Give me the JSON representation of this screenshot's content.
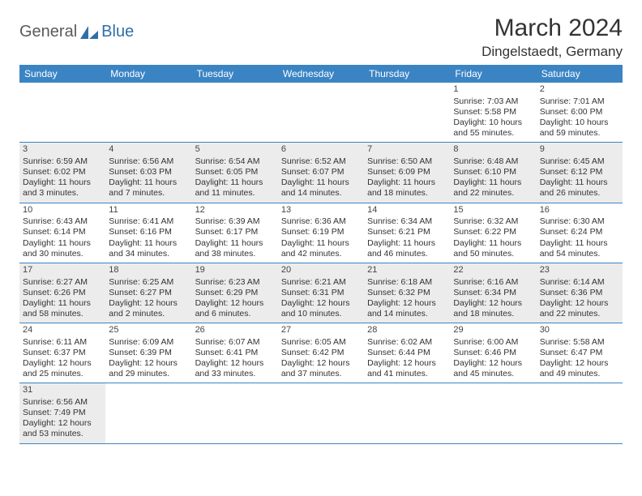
{
  "brand": {
    "part1": "General",
    "part2": "Blue"
  },
  "title": "March 2024",
  "location": "Dingelstaedt, Germany",
  "colors": {
    "header_bg": "#3b84c4",
    "header_text": "#ffffff",
    "shaded_bg": "#ececec",
    "row_border": "#3b84c4",
    "brand_gray": "#5a5a5a",
    "brand_blue": "#2f6fa8"
  },
  "day_headers": [
    "Sunday",
    "Monday",
    "Tuesday",
    "Wednesday",
    "Thursday",
    "Friday",
    "Saturday"
  ],
  "weeks": [
    [
      {
        "n": "",
        "sr": "",
        "ss": "",
        "dl": "",
        "shaded": false
      },
      {
        "n": "",
        "sr": "",
        "ss": "",
        "dl": "",
        "shaded": false
      },
      {
        "n": "",
        "sr": "",
        "ss": "",
        "dl": "",
        "shaded": false
      },
      {
        "n": "",
        "sr": "",
        "ss": "",
        "dl": "",
        "shaded": false
      },
      {
        "n": "",
        "sr": "",
        "ss": "",
        "dl": "",
        "shaded": false
      },
      {
        "n": "1",
        "sr": "Sunrise: 7:03 AM",
        "ss": "Sunset: 5:58 PM",
        "dl": "Daylight: 10 hours and 55 minutes.",
        "shaded": false
      },
      {
        "n": "2",
        "sr": "Sunrise: 7:01 AM",
        "ss": "Sunset: 6:00 PM",
        "dl": "Daylight: 10 hours and 59 minutes.",
        "shaded": false
      }
    ],
    [
      {
        "n": "3",
        "sr": "Sunrise: 6:59 AM",
        "ss": "Sunset: 6:02 PM",
        "dl": "Daylight: 11 hours and 3 minutes.",
        "shaded": true
      },
      {
        "n": "4",
        "sr": "Sunrise: 6:56 AM",
        "ss": "Sunset: 6:03 PM",
        "dl": "Daylight: 11 hours and 7 minutes.",
        "shaded": true
      },
      {
        "n": "5",
        "sr": "Sunrise: 6:54 AM",
        "ss": "Sunset: 6:05 PM",
        "dl": "Daylight: 11 hours and 11 minutes.",
        "shaded": true
      },
      {
        "n": "6",
        "sr": "Sunrise: 6:52 AM",
        "ss": "Sunset: 6:07 PM",
        "dl": "Daylight: 11 hours and 14 minutes.",
        "shaded": true
      },
      {
        "n": "7",
        "sr": "Sunrise: 6:50 AM",
        "ss": "Sunset: 6:09 PM",
        "dl": "Daylight: 11 hours and 18 minutes.",
        "shaded": true
      },
      {
        "n": "8",
        "sr": "Sunrise: 6:48 AM",
        "ss": "Sunset: 6:10 PM",
        "dl": "Daylight: 11 hours and 22 minutes.",
        "shaded": true
      },
      {
        "n": "9",
        "sr": "Sunrise: 6:45 AM",
        "ss": "Sunset: 6:12 PM",
        "dl": "Daylight: 11 hours and 26 minutes.",
        "shaded": true
      }
    ],
    [
      {
        "n": "10",
        "sr": "Sunrise: 6:43 AM",
        "ss": "Sunset: 6:14 PM",
        "dl": "Daylight: 11 hours and 30 minutes.",
        "shaded": false
      },
      {
        "n": "11",
        "sr": "Sunrise: 6:41 AM",
        "ss": "Sunset: 6:16 PM",
        "dl": "Daylight: 11 hours and 34 minutes.",
        "shaded": false
      },
      {
        "n": "12",
        "sr": "Sunrise: 6:39 AM",
        "ss": "Sunset: 6:17 PM",
        "dl": "Daylight: 11 hours and 38 minutes.",
        "shaded": false
      },
      {
        "n": "13",
        "sr": "Sunrise: 6:36 AM",
        "ss": "Sunset: 6:19 PM",
        "dl": "Daylight: 11 hours and 42 minutes.",
        "shaded": false
      },
      {
        "n": "14",
        "sr": "Sunrise: 6:34 AM",
        "ss": "Sunset: 6:21 PM",
        "dl": "Daylight: 11 hours and 46 minutes.",
        "shaded": false
      },
      {
        "n": "15",
        "sr": "Sunrise: 6:32 AM",
        "ss": "Sunset: 6:22 PM",
        "dl": "Daylight: 11 hours and 50 minutes.",
        "shaded": false
      },
      {
        "n": "16",
        "sr": "Sunrise: 6:30 AM",
        "ss": "Sunset: 6:24 PM",
        "dl": "Daylight: 11 hours and 54 minutes.",
        "shaded": false
      }
    ],
    [
      {
        "n": "17",
        "sr": "Sunrise: 6:27 AM",
        "ss": "Sunset: 6:26 PM",
        "dl": "Daylight: 11 hours and 58 minutes.",
        "shaded": true
      },
      {
        "n": "18",
        "sr": "Sunrise: 6:25 AM",
        "ss": "Sunset: 6:27 PM",
        "dl": "Daylight: 12 hours and 2 minutes.",
        "shaded": true
      },
      {
        "n": "19",
        "sr": "Sunrise: 6:23 AM",
        "ss": "Sunset: 6:29 PM",
        "dl": "Daylight: 12 hours and 6 minutes.",
        "shaded": true
      },
      {
        "n": "20",
        "sr": "Sunrise: 6:21 AM",
        "ss": "Sunset: 6:31 PM",
        "dl": "Daylight: 12 hours and 10 minutes.",
        "shaded": true
      },
      {
        "n": "21",
        "sr": "Sunrise: 6:18 AM",
        "ss": "Sunset: 6:32 PM",
        "dl": "Daylight: 12 hours and 14 minutes.",
        "shaded": true
      },
      {
        "n": "22",
        "sr": "Sunrise: 6:16 AM",
        "ss": "Sunset: 6:34 PM",
        "dl": "Daylight: 12 hours and 18 minutes.",
        "shaded": true
      },
      {
        "n": "23",
        "sr": "Sunrise: 6:14 AM",
        "ss": "Sunset: 6:36 PM",
        "dl": "Daylight: 12 hours and 22 minutes.",
        "shaded": true
      }
    ],
    [
      {
        "n": "24",
        "sr": "Sunrise: 6:11 AM",
        "ss": "Sunset: 6:37 PM",
        "dl": "Daylight: 12 hours and 25 minutes.",
        "shaded": false
      },
      {
        "n": "25",
        "sr": "Sunrise: 6:09 AM",
        "ss": "Sunset: 6:39 PM",
        "dl": "Daylight: 12 hours and 29 minutes.",
        "shaded": false
      },
      {
        "n": "26",
        "sr": "Sunrise: 6:07 AM",
        "ss": "Sunset: 6:41 PM",
        "dl": "Daylight: 12 hours and 33 minutes.",
        "shaded": false
      },
      {
        "n": "27",
        "sr": "Sunrise: 6:05 AM",
        "ss": "Sunset: 6:42 PM",
        "dl": "Daylight: 12 hours and 37 minutes.",
        "shaded": false
      },
      {
        "n": "28",
        "sr": "Sunrise: 6:02 AM",
        "ss": "Sunset: 6:44 PM",
        "dl": "Daylight: 12 hours and 41 minutes.",
        "shaded": false
      },
      {
        "n": "29",
        "sr": "Sunrise: 6:00 AM",
        "ss": "Sunset: 6:46 PM",
        "dl": "Daylight: 12 hours and 45 minutes.",
        "shaded": false
      },
      {
        "n": "30",
        "sr": "Sunrise: 5:58 AM",
        "ss": "Sunset: 6:47 PM",
        "dl": "Daylight: 12 hours and 49 minutes.",
        "shaded": false
      }
    ],
    [
      {
        "n": "31",
        "sr": "Sunrise: 6:56 AM",
        "ss": "Sunset: 7:49 PM",
        "dl": "Daylight: 12 hours and 53 minutes.",
        "shaded": true
      },
      {
        "n": "",
        "sr": "",
        "ss": "",
        "dl": "",
        "shaded": false
      },
      {
        "n": "",
        "sr": "",
        "ss": "",
        "dl": "",
        "shaded": false
      },
      {
        "n": "",
        "sr": "",
        "ss": "",
        "dl": "",
        "shaded": false
      },
      {
        "n": "",
        "sr": "",
        "ss": "",
        "dl": "",
        "shaded": false
      },
      {
        "n": "",
        "sr": "",
        "ss": "",
        "dl": "",
        "shaded": false
      },
      {
        "n": "",
        "sr": "",
        "ss": "",
        "dl": "",
        "shaded": false
      }
    ]
  ]
}
